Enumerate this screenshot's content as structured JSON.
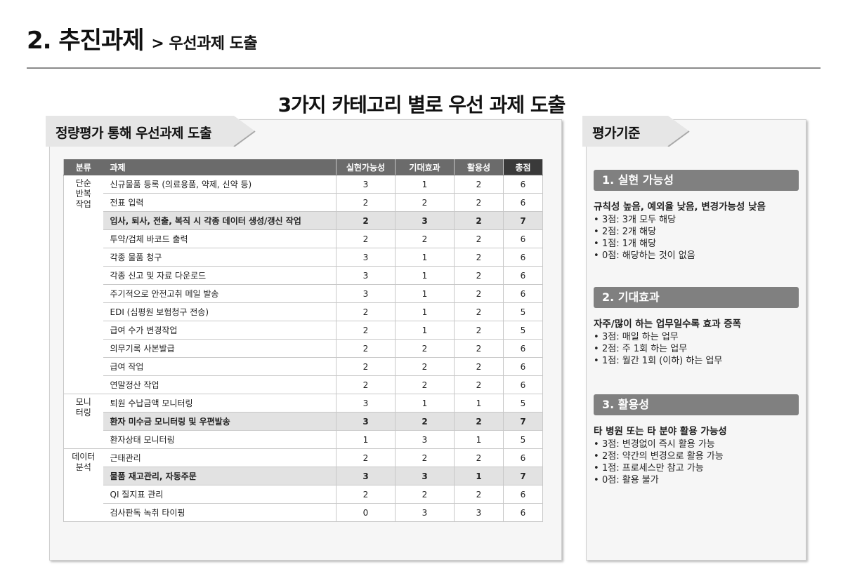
{
  "header": {
    "title": "2. 추진과제",
    "subtitle": "> 우선과제 도출"
  },
  "main_heading": "3가지 카테고리 별로 우선 과제 도출",
  "left_panel": {
    "tab_label": "정량평가 통해 우선과제 도출",
    "columns": [
      "분류",
      "과제",
      "실현가능성",
      "기대효과",
      "활용성",
      "총점"
    ],
    "categories": [
      {
        "label": "단순\n반복\n작업",
        "rows": 12
      },
      {
        "label": "모니\n터링",
        "rows": 3
      },
      {
        "label": "데이터\n분석",
        "rows": 4
      }
    ],
    "rows": [
      {
        "task": "신규물품 등록 (의료용품, 약제, 신약 등)",
        "feasibility": "3",
        "effect": "1",
        "utility": "2",
        "total": "6",
        "highlight": false
      },
      {
        "task": "전표 입력",
        "feasibility": "2",
        "effect": "2",
        "utility": "2",
        "total": "6",
        "highlight": false
      },
      {
        "task": "입사, 퇴사, 전출, 복직 시 각종 데이터 생성/갱신 작업",
        "feasibility": "2",
        "effect": "3",
        "utility": "2",
        "total": "7",
        "highlight": true
      },
      {
        "task": "투약/검체 바코드 출력",
        "feasibility": "2",
        "effect": "2",
        "utility": "2",
        "total": "6",
        "highlight": false
      },
      {
        "task": "각종 물품 청구",
        "feasibility": "3",
        "effect": "1",
        "utility": "2",
        "total": "6",
        "highlight": false
      },
      {
        "task": "각종 신고 및 자료 다운로드",
        "feasibility": "3",
        "effect": "1",
        "utility": "2",
        "total": "6",
        "highlight": false
      },
      {
        "task": "주기적으로 안전고취 메일 발송",
        "feasibility": "3",
        "effect": "1",
        "utility": "2",
        "total": "6",
        "highlight": false
      },
      {
        "task": "EDI (심평원 보험청구 전송)",
        "feasibility": "2",
        "effect": "1",
        "utility": "2",
        "total": "5",
        "highlight": false
      },
      {
        "task": "급여 수가 변경작업",
        "feasibility": "2",
        "effect": "1",
        "utility": "2",
        "total": "5",
        "highlight": false
      },
      {
        "task": "의무기록 사본발급",
        "feasibility": "2",
        "effect": "2",
        "utility": "2",
        "total": "6",
        "highlight": false
      },
      {
        "task": "급여 작업",
        "feasibility": "2",
        "effect": "2",
        "utility": "2",
        "total": "6",
        "highlight": false
      },
      {
        "task": "연말정산 작업",
        "feasibility": "2",
        "effect": "2",
        "utility": "2",
        "total": "6",
        "highlight": false
      },
      {
        "task": "퇴원 수납금액 모니터링",
        "feasibility": "3",
        "effect": "1",
        "utility": "1",
        "total": "5",
        "highlight": false
      },
      {
        "task": "환자 미수금 모니터링 및 우편발송",
        "feasibility": "3",
        "effect": "2",
        "utility": "2",
        "total": "7",
        "highlight": true
      },
      {
        "task": "환자상태 모니터링",
        "feasibility": "1",
        "effect": "3",
        "utility": "1",
        "total": "5",
        "highlight": false
      },
      {
        "task": "근태관리",
        "feasibility": "2",
        "effect": "2",
        "utility": "2",
        "total": "6",
        "highlight": false
      },
      {
        "task": "물품 재고관리, 자동주문",
        "feasibility": "3",
        "effect": "3",
        "utility": "1",
        "total": "7",
        "highlight": true
      },
      {
        "task": "QI 질지표 관리",
        "feasibility": "2",
        "effect": "2",
        "utility": "2",
        "total": "6",
        "highlight": false
      },
      {
        "task": "검사판독 녹취 타이핑",
        "feasibility": "0",
        "effect": "3",
        "utility": "3",
        "total": "6",
        "highlight": false
      }
    ]
  },
  "right_panel": {
    "tab_label": "평가기준",
    "criteria": [
      {
        "title": "1. 실현 가능성",
        "lead": "규칙성 높음, 예외율 낮음, 변경가능성 낮음",
        "items": [
          "3점: 3개 모두 해당",
          "2점: 2개 해당",
          "1점: 1개 해당",
          "0점: 해당하는 것이 없음"
        ]
      },
      {
        "title": "2. 기대효과",
        "lead": "자주/많이 하는 업무일수록 효과 증폭",
        "items": [
          "3점: 매일 하는 업무",
          "2점: 주 1회 하는 업무",
          "1점: 월간 1회 (이하) 하는 업무"
        ]
      },
      {
        "title": "3. 활용성",
        "lead": "타 병원 또는 타 분야 활용 가능성",
        "items": [
          "3점: 변경없이 즉시 활용 가능",
          "2점: 약간의 변경으로 활용 가능",
          "1점: 프로세스만 참고 가능",
          "0점: 활용 불가"
        ]
      }
    ]
  },
  "colors": {
    "header_cell": "#6b6b6b",
    "total_header_cell": "#3a3a3a",
    "highlight_row": "#e2e2e2",
    "criteria_bar": "#808080",
    "panel_bg": "#f6f6f6"
  }
}
